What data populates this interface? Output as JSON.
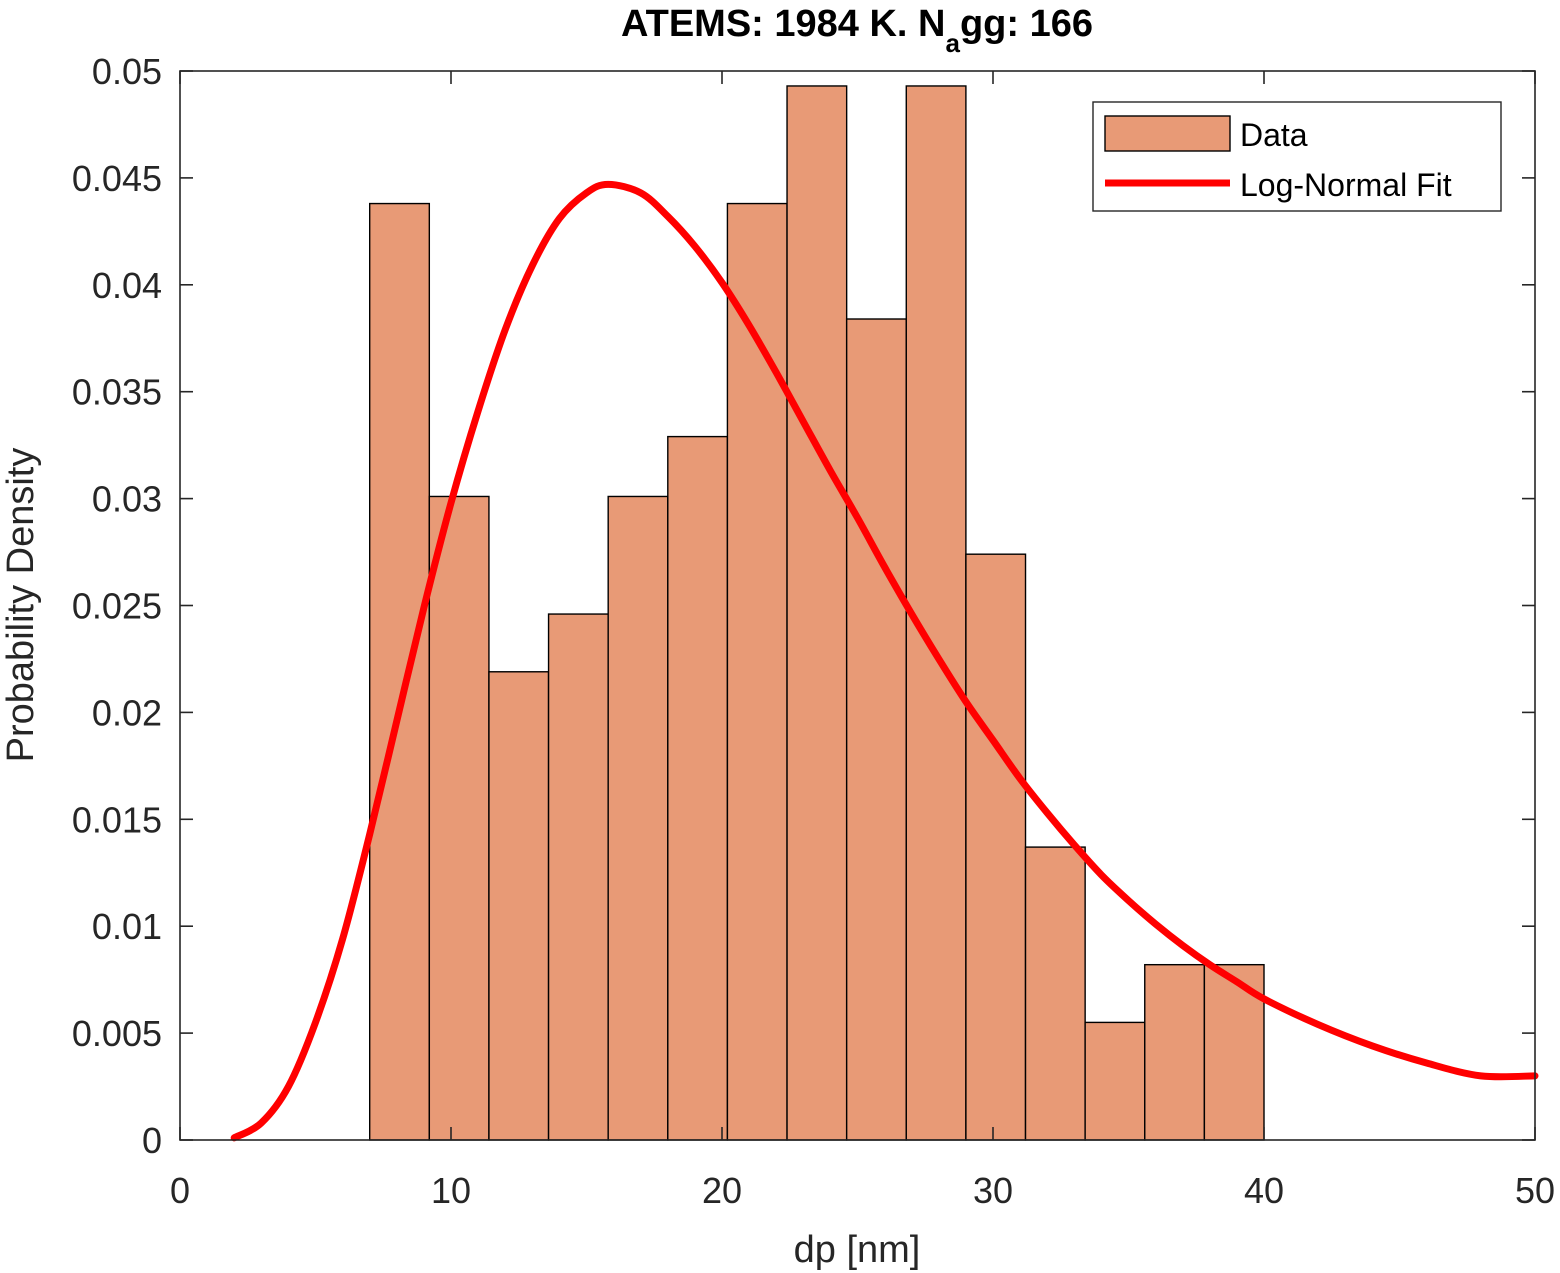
{
  "chart_data": {
    "type": "bar",
    "title": {
      "prefix": "ATEMS: 1984 K. N",
      "subscript": "a",
      "suffix": "gg: 166"
    },
    "xlabel": "dp [nm]",
    "ylabel": "Probability Density",
    "xlim": [
      0,
      50
    ],
    "ylim": [
      0,
      0.05
    ],
    "xticks": [
      0,
      10,
      20,
      30,
      40,
      50
    ],
    "xtick_labels": [
      "0",
      "10",
      "20",
      "30",
      "40",
      "50"
    ],
    "yticks": [
      0,
      0.005,
      0.01,
      0.015,
      0.02,
      0.025,
      0.03,
      0.035,
      0.04,
      0.045,
      0.05
    ],
    "ytick_labels": [
      "0",
      "0.005",
      "0.01",
      "0.015",
      "0.02",
      "0.025",
      "0.03",
      "0.035",
      "0.04",
      "0.045",
      "0.05"
    ],
    "grid": false,
    "legend_position": "top-right",
    "series": [
      {
        "name": "Data",
        "kind": "histogram",
        "color": "#e89a76",
        "edge_color": "#000000",
        "bin_edges": [
          7.0,
          9.2,
          11.4,
          13.6,
          15.8,
          18.0,
          20.2,
          22.4,
          24.6,
          26.8,
          29.0,
          31.2,
          33.4,
          35.6,
          37.8,
          40.0
        ],
        "values": [
          0.0438,
          0.0301,
          0.0219,
          0.0246,
          0.0301,
          0.0329,
          0.0438,
          0.0493,
          0.0384,
          0.0493,
          0.0274,
          0.0137,
          0.0055,
          0.0082,
          0.0082
        ]
      },
      {
        "name": "Log-Normal Fit",
        "kind": "line",
        "color": "#ff0000",
        "x": [
          2,
          3,
          4,
          5,
          6,
          7,
          8,
          9,
          10,
          11,
          12,
          13,
          14,
          15,
          15.8,
          17,
          18,
          19,
          20,
          21,
          22,
          23,
          24,
          25,
          26,
          27,
          28,
          29,
          30,
          31,
          32,
          33,
          34,
          35,
          36,
          37,
          38,
          39,
          40,
          42,
          44,
          46,
          48,
          50
        ],
        "y": [
          0.0001,
          0.0008,
          0.0025,
          0.0055,
          0.0094,
          0.0143,
          0.0196,
          0.0249,
          0.0298,
          0.0341,
          0.0379,
          0.0409,
          0.0431,
          0.0443,
          0.0447,
          0.0443,
          0.0432,
          0.0418,
          0.0401,
          0.0381,
          0.0359,
          0.0336,
          0.0313,
          0.0291,
          0.0268,
          0.0246,
          0.0225,
          0.0205,
          0.0187,
          0.0169,
          0.0153,
          0.0138,
          0.0124,
          0.0112,
          0.0101,
          0.0091,
          0.0082,
          0.0074,
          0.0066,
          0.0054,
          0.0044,
          0.0036,
          0.003,
          0.003
        ]
      }
    ]
  }
}
